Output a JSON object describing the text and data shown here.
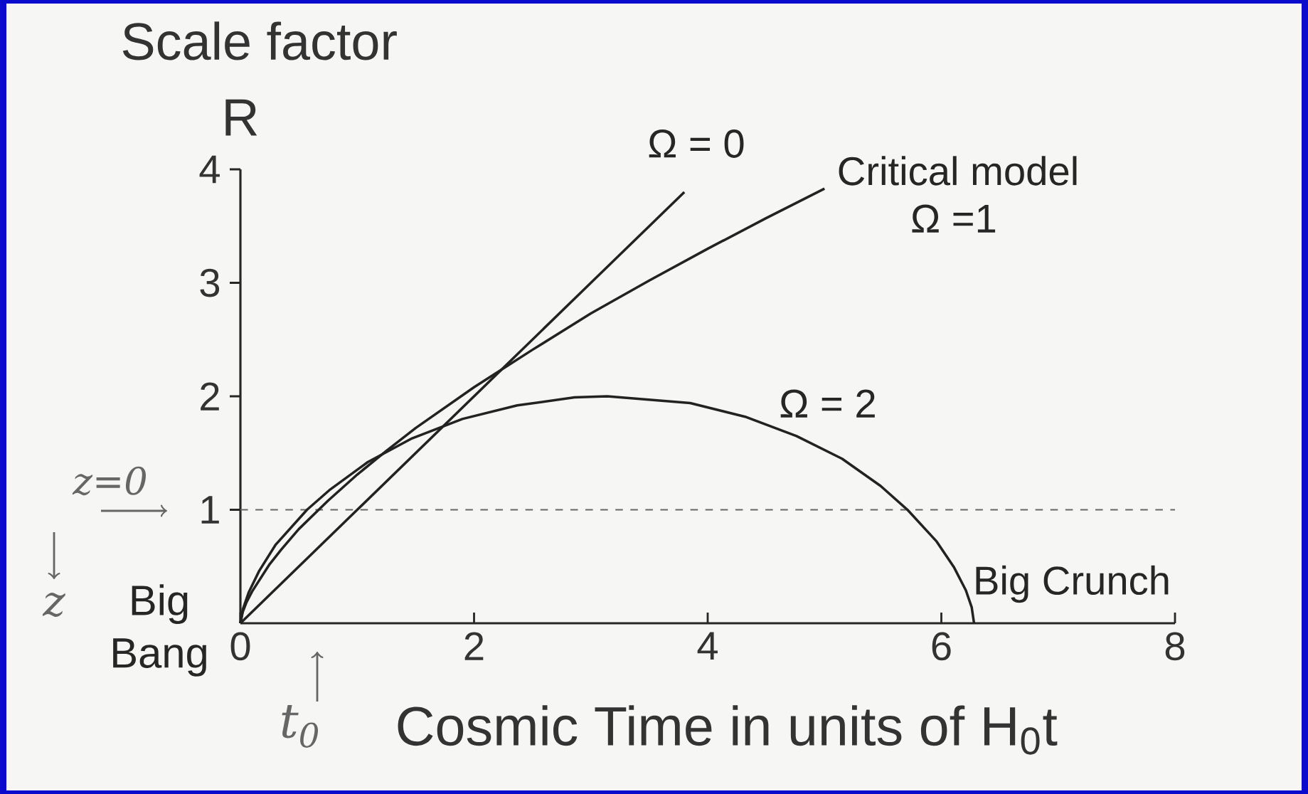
{
  "chart_data": {
    "type": "line",
    "title": "Scale factor",
    "ylabel": "R",
    "xlabel": "Cosmic Time in units of H$_{0}$t",
    "xlim": [
      0,
      8
    ],
    "ylim": [
      0,
      4
    ],
    "xticks": [
      0,
      2,
      4,
      6,
      8
    ],
    "yticks": [
      1,
      2,
      3,
      4
    ],
    "marker": "none",
    "line_style": "solid",
    "series": [
      {
        "color": "#222222",
        "x": [
          0,
          1,
          2,
          3,
          3.8
        ],
        "values": [
          0,
          1,
          2,
          3,
          3.8
        ]
      },
      {
        "color": "#222222",
        "x": [
          0,
          0.02,
          0.05,
          0.1,
          0.25,
          0.35,
          0.5,
          0.67,
          0.75,
          1,
          1.25,
          1.5,
          2,
          2.5,
          3,
          3.5,
          4,
          4.5,
          5
        ],
        "values": [
          0,
          0.1,
          0.18,
          0.28,
          0.52,
          0.65,
          0.83,
          1,
          1.08,
          1.31,
          1.52,
          1.72,
          2.08,
          2.41,
          2.73,
          3.02,
          3.3,
          3.57,
          3.83
        ]
      },
      {
        "color": "#222222",
        "x": [
          0,
          0.02,
          0.07,
          0.16,
          0.3,
          0.57,
          0.77,
          1.09,
          1.47,
          1.9,
          2.37,
          2.86,
          3.14,
          3.85,
          4.32,
          4.76,
          5.15,
          5.48,
          5.71,
          5.96,
          6.11,
          6.21,
          6.26,
          6.28
        ],
        "values": [
          0,
          0.12,
          0.27,
          0.46,
          0.69,
          1,
          1.18,
          1.42,
          1.63,
          1.8,
          1.92,
          1.99,
          2,
          1.94,
          1.82,
          1.65,
          1.45,
          1.21,
          1,
          0.72,
          0.49,
          0.29,
          0.14,
          0
        ]
      }
    ],
    "ref_lines": [
      {
        "axis": "y",
        "value": 1,
        "color": "#666666",
        "line_style": "dashed"
      }
    ],
    "annotations": [
      "Ω = 0",
      "Critical model",
      "Ω =1",
      "Ω = 2",
      "Big Crunch",
      "Big Bang",
      "z=0",
      "z",
      "t$_{0}$"
    ]
  }
}
